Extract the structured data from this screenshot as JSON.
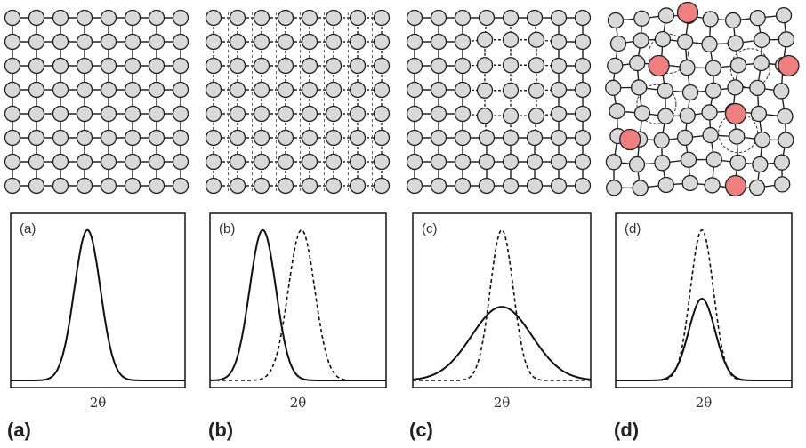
{
  "panels": [
    {
      "id": "a",
      "inner_label": "(a)",
      "panel_label": "(a)",
      "axis_label": "2θ",
      "lattice": "perfect",
      "peaks": [
        {
          "style": "solid",
          "center": 0.44,
          "width": 0.075,
          "height": 0.92
        }
      ]
    },
    {
      "id": "b",
      "inner_label": "(b)",
      "panel_label": "(b)",
      "axis_label": "2θ",
      "lattice": "uniform-strain",
      "peaks": [
        {
          "style": "solid",
          "center": 0.3,
          "width": 0.075,
          "height": 0.92
        },
        {
          "style": "dashed",
          "center": 0.52,
          "width": 0.075,
          "height": 0.92
        }
      ]
    },
    {
      "id": "c",
      "inner_label": "(c)",
      "panel_label": "(c)",
      "axis_label": "2θ",
      "lattice": "nonuniform-strain",
      "peaks": [
        {
          "style": "dashed",
          "center": 0.5,
          "width": 0.065,
          "height": 0.92
        },
        {
          "style": "solid",
          "center": 0.5,
          "width": 0.17,
          "height": 0.45
        }
      ]
    },
    {
      "id": "d",
      "inner_label": "(d)",
      "panel_label": "(d)",
      "axis_label": "2θ",
      "lattice": "impurities",
      "peaks": [
        {
          "style": "dashed",
          "center": 0.49,
          "width": 0.065,
          "height": 0.92
        },
        {
          "style": "solid",
          "center": 0.49,
          "width": 0.075,
          "height": 0.5
        }
      ]
    }
  ],
  "colors": {
    "atom": "#d9d9d9",
    "impurity": "#f08080",
    "stroke": "#222222"
  }
}
